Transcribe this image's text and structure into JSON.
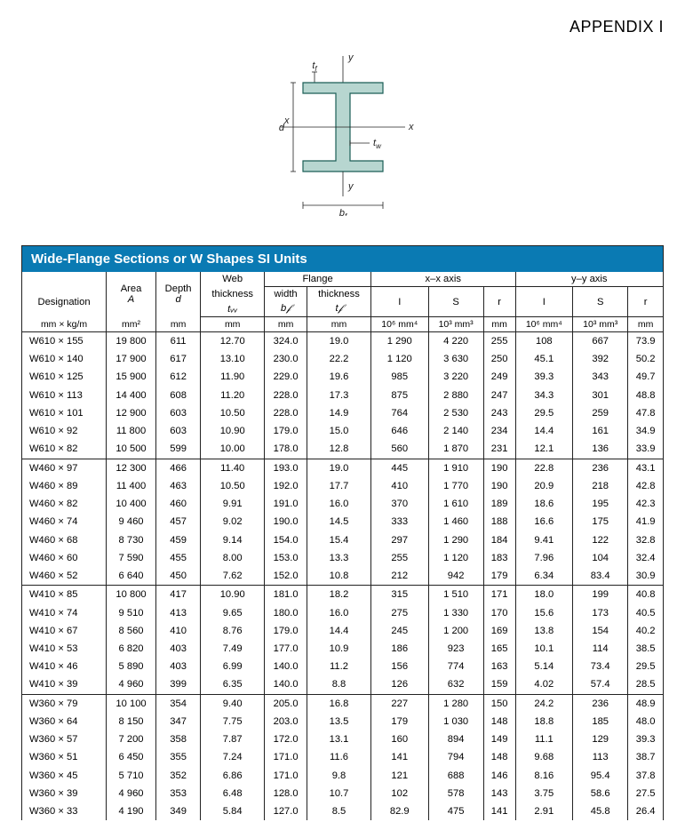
{
  "appendix_label": "APPENDIX I",
  "diagram": {
    "labels": {
      "tf": "t",
      "tf_sub": "f",
      "y": "y",
      "d": "d",
      "x": "x",
      "tw": "t",
      "tw_sub": "w",
      "bf": "b",
      "bf_sub": "f"
    },
    "colors": {
      "fill": "#b7d6d0",
      "stroke": "#1b5e56",
      "text": "#222222"
    }
  },
  "table": {
    "title": "Wide-Flange Sections or W Shapes SI Units",
    "header_groups": {
      "designation": "Designation",
      "area": "Area",
      "area_sym": "A",
      "depth": "Depth",
      "depth_sym": "d",
      "web": "Web",
      "web_th": "thickness",
      "web_sym": "tᵥᵥ",
      "flange": "Flange",
      "flange_w": "width",
      "flange_w_sym": "b𝒻",
      "flange_t": "thickness",
      "flange_t_sym": "t𝒻",
      "xx": "x–x axis",
      "yy": "y–y axis",
      "I": "I",
      "S": "S",
      "r": "r"
    },
    "units": {
      "c1": "mm × kg/m",
      "c2": "mm²",
      "c3": "mm",
      "c4": "mm",
      "c5": "mm",
      "c6": "mm",
      "c7": "10⁶ mm⁴",
      "c8": "10³ mm³",
      "c9": "mm",
      "c10": "10⁶ mm⁴",
      "c11": "10³ mm³",
      "c12": "mm"
    },
    "groups": [
      {
        "rows": [
          [
            "W610 × 155",
            "19 800",
            "611",
            "12.70",
            "324.0",
            "19.0",
            "1 290",
            "4 220",
            "255",
            "108",
            "667",
            "73.9"
          ],
          [
            "W610 × 140",
            "17 900",
            "617",
            "13.10",
            "230.0",
            "22.2",
            "1 120",
            "3 630",
            "250",
            "45.1",
            "392",
            "50.2"
          ],
          [
            "W610 × 125",
            "15 900",
            "612",
            "11.90",
            "229.0",
            "19.6",
            "985",
            "3 220",
            "249",
            "39.3",
            "343",
            "49.7"
          ],
          [
            "W610 × 113",
            "14 400",
            "608",
            "11.20",
            "228.0",
            "17.3",
            "875",
            "2 880",
            "247",
            "34.3",
            "301",
            "48.8"
          ],
          [
            "W610 × 101",
            "12 900",
            "603",
            "10.50",
            "228.0",
            "14.9",
            "764",
            "2 530",
            "243",
            "29.5",
            "259",
            "47.8"
          ],
          [
            "W610 × 92",
            "11 800",
            "603",
            "10.90",
            "179.0",
            "15.0",
            "646",
            "2 140",
            "234",
            "14.4",
            "161",
            "34.9"
          ],
          [
            "W610 × 82",
            "10 500",
            "599",
            "10.00",
            "178.0",
            "12.8",
            "560",
            "1 870",
            "231",
            "12.1",
            "136",
            "33.9"
          ]
        ]
      },
      {
        "rows": [
          [
            "W460 × 97",
            "12 300",
            "466",
            "11.40",
            "193.0",
            "19.0",
            "445",
            "1 910",
            "190",
            "22.8",
            "236",
            "43.1"
          ],
          [
            "W460 × 89",
            "11 400",
            "463",
            "10.50",
            "192.0",
            "17.7",
            "410",
            "1 770",
            "190",
            "20.9",
            "218",
            "42.8"
          ],
          [
            "W460 × 82",
            "10 400",
            "460",
            "9.91",
            "191.0",
            "16.0",
            "370",
            "1 610",
            "189",
            "18.6",
            "195",
            "42.3"
          ],
          [
            "W460 × 74",
            "9 460",
            "457",
            "9.02",
            "190.0",
            "14.5",
            "333",
            "1 460",
            "188",
            "16.6",
            "175",
            "41.9"
          ],
          [
            "W460 × 68",
            "8 730",
            "459",
            "9.14",
            "154.0",
            "15.4",
            "297",
            "1 290",
            "184",
            "9.41",
            "122",
            "32.8"
          ],
          [
            "W460 × 60",
            "7 590",
            "455",
            "8.00",
            "153.0",
            "13.3",
            "255",
            "1 120",
            "183",
            "7.96",
            "104",
            "32.4"
          ],
          [
            "W460 × 52",
            "6 640",
            "450",
            "7.62",
            "152.0",
            "10.8",
            "212",
            "942",
            "179",
            "6.34",
            "83.4",
            "30.9"
          ]
        ]
      },
      {
        "rows": [
          [
            "W410 × 85",
            "10 800",
            "417",
            "10.90",
            "181.0",
            "18.2",
            "315",
            "1 510",
            "171",
            "18.0",
            "199",
            "40.8"
          ],
          [
            "W410 × 74",
            "9 510",
            "413",
            "9.65",
            "180.0",
            "16.0",
            "275",
            "1 330",
            "170",
            "15.6",
            "173",
            "40.5"
          ],
          [
            "W410 × 67",
            "8 560",
            "410",
            "8.76",
            "179.0",
            "14.4",
            "245",
            "1 200",
            "169",
            "13.8",
            "154",
            "40.2"
          ],
          [
            "W410 × 53",
            "6 820",
            "403",
            "7.49",
            "177.0",
            "10.9",
            "186",
            "923",
            "165",
            "10.1",
            "114",
            "38.5"
          ],
          [
            "W410 × 46",
            "5 890",
            "403",
            "6.99",
            "140.0",
            "11.2",
            "156",
            "774",
            "163",
            "5.14",
            "73.4",
            "29.5"
          ],
          [
            "W410 × 39",
            "4 960",
            "399",
            "6.35",
            "140.0",
            "8.8",
            "126",
            "632",
            "159",
            "4.02",
            "57.4",
            "28.5"
          ]
        ]
      },
      {
        "rows": [
          [
            "W360 × 79",
            "10 100",
            "354",
            "9.40",
            "205.0",
            "16.8",
            "227",
            "1 280",
            "150",
            "24.2",
            "236",
            "48.9"
          ],
          [
            "W360 × 64",
            "8 150",
            "347",
            "7.75",
            "203.0",
            "13.5",
            "179",
            "1 030",
            "148",
            "18.8",
            "185",
            "48.0"
          ],
          [
            "W360 × 57",
            "7 200",
            "358",
            "7.87",
            "172.0",
            "13.1",
            "160",
            "894",
            "149",
            "11.1",
            "129",
            "39.3"
          ],
          [
            "W360 × 51",
            "6 450",
            "355",
            "7.24",
            "171.0",
            "11.6",
            "141",
            "794",
            "148",
            "9.68",
            "113",
            "38.7"
          ],
          [
            "W360 × 45",
            "5 710",
            "352",
            "6.86",
            "171.0",
            "9.8",
            "121",
            "688",
            "146",
            "8.16",
            "95.4",
            "37.8"
          ],
          [
            "W360 × 39",
            "4 960",
            "353",
            "6.48",
            "128.0",
            "10.7",
            "102",
            "578",
            "143",
            "3.75",
            "58.6",
            "27.5"
          ],
          [
            "W360 × 33",
            "4 190",
            "349",
            "5.84",
            "127.0",
            "8.5",
            "82.9",
            "475",
            "141",
            "2.91",
            "45.8",
            "26.4"
          ]
        ]
      }
    ]
  }
}
